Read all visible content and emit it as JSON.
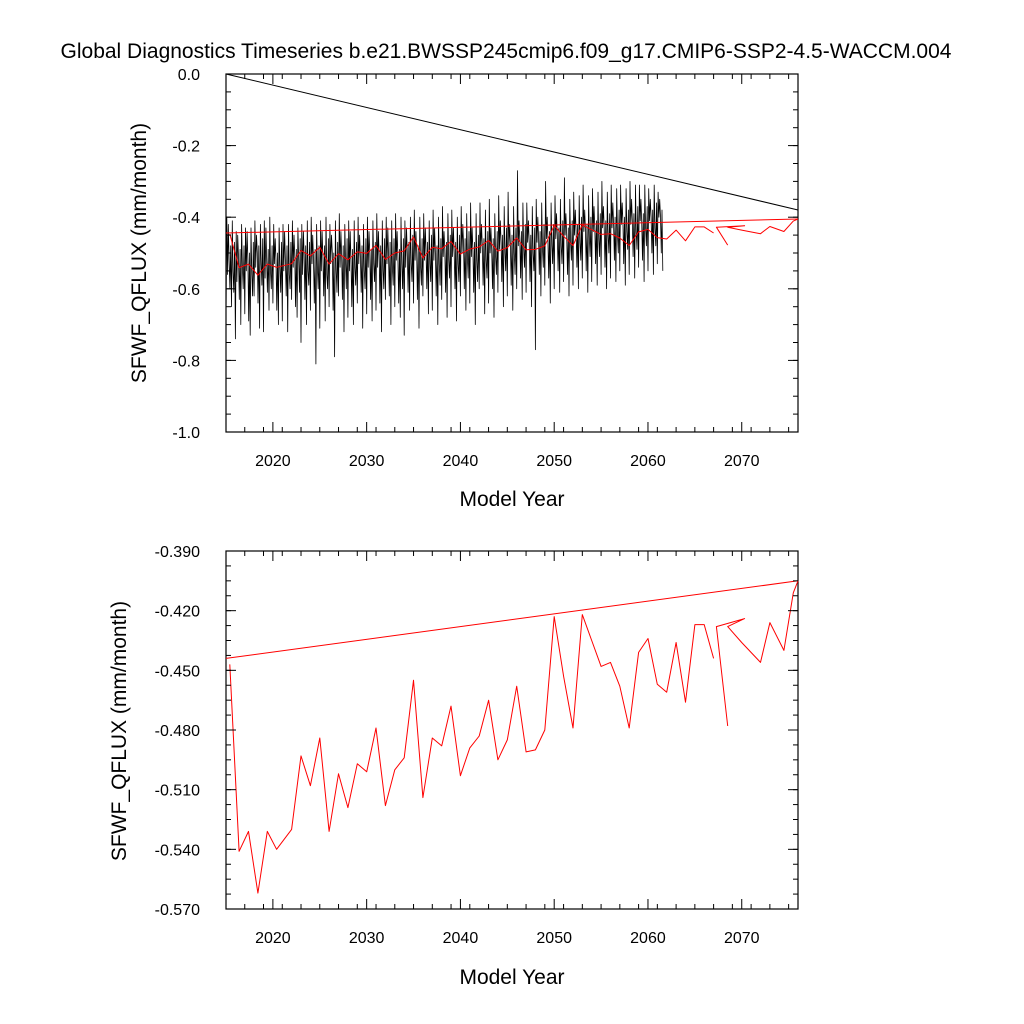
{
  "title": "Global Diagnostics Timeseries b.e21.BWSSP245cmip6.f09_g17.CMIP6-SSP2-4.5-WACCM.004",
  "chart_data": [
    {
      "type": "line",
      "title": "Global Diagnostics Timeseries b.e21.BWSSP245cmip6.f09_g17.CMIP6-SSP2-4.5-WACCM.004",
      "xlabel": "Model Year",
      "ylabel": "SFWF_QFLUX (mm/month)",
      "xlim": [
        2015,
        2076
      ],
      "ylim": [
        -1.0,
        0.0
      ],
      "xticks": [
        "2020",
        "2030",
        "2040",
        "2050",
        "2060",
        "2070"
      ],
      "yticks": [
        "0.0",
        "-0.2",
        "-0.4",
        "-0.6",
        "-0.8",
        "-1.0"
      ],
      "series": [
        {
          "name": "monthly",
          "color": "#000000",
          "x_start": 2015.0,
          "step": 0.0833333,
          "values": [
            -0.69,
            -0.4,
            -0.56,
            -0.42,
            -0.52,
            -0.6,
            -0.48,
            -0.65,
            -0.41,
            -0.55,
            -0.61,
            -0.47,
            -0.74,
            -0.44,
            -0.58,
            -0.45,
            -0.51,
            -0.63,
            -0.49,
            -0.7,
            -0.42,
            -0.54,
            -0.6,
            -0.48,
            -0.67,
            -0.43,
            -0.55,
            -0.44,
            -0.52,
            -0.69,
            -0.5,
            -0.73,
            -0.43,
            -0.56,
            -0.62,
            -0.47,
            -0.62,
            -0.41,
            -0.54,
            -0.45,
            -0.5,
            -0.64,
            -0.48,
            -0.71,
            -0.42,
            -0.53,
            -0.59,
            -0.46,
            -0.72,
            -0.41,
            -0.57,
            -0.43,
            -0.51,
            -0.61,
            -0.49,
            -0.66,
            -0.4,
            -0.55,
            -0.6,
            -0.48,
            -0.64,
            -0.42,
            -0.53,
            -0.46,
            -0.52,
            -0.66,
            -0.5,
            -0.7,
            -0.43,
            -0.54,
            -0.61,
            -0.47,
            -0.69,
            -0.42,
            -0.55,
            -0.44,
            -0.52,
            -0.62,
            -0.48,
            -0.72,
            -0.42,
            -0.56,
            -0.6,
            -0.47,
            -0.63,
            -0.41,
            -0.54,
            -0.45,
            -0.51,
            -0.65,
            -0.49,
            -0.68,
            -0.43,
            -0.52,
            -0.61,
            -0.46,
            -0.75,
            -0.42,
            -0.56,
            -0.44,
            -0.5,
            -0.63,
            -0.48,
            -0.7,
            -0.41,
            -0.55,
            -0.59,
            -0.47,
            -0.66,
            -0.4,
            -0.53,
            -0.45,
            -0.52,
            -0.64,
            -0.49,
            -0.81,
            -0.42,
            -0.54,
            -0.6,
            -0.48,
            -0.71,
            -0.41,
            -0.55,
            -0.44,
            -0.51,
            -0.62,
            -0.48,
            -0.69,
            -0.4,
            -0.56,
            -0.6,
            -0.46,
            -0.65,
            -0.42,
            -0.53,
            -0.45,
            -0.5,
            -0.66,
            -0.5,
            -0.79,
            -0.41,
            -0.55,
            -0.61,
            -0.47,
            -0.62,
            -0.39,
            -0.54,
            -0.44,
            -0.51,
            -0.63,
            -0.48,
            -0.72,
            -0.42,
            -0.53,
            -0.6,
            -0.46,
            -0.68,
            -0.41,
            -0.55,
            -0.44,
            -0.52,
            -0.65,
            -0.49,
            -0.7,
            -0.41,
            -0.54,
            -0.59,
            -0.47,
            -0.64,
            -0.4,
            -0.53,
            -0.45,
            -0.51,
            -0.61,
            -0.48,
            -0.71,
            -0.42,
            -0.55,
            -0.6,
            -0.46,
            -0.67,
            -0.4,
            -0.54,
            -0.44,
            -0.5,
            -0.63,
            -0.49,
            -0.69,
            -0.41,
            -0.53,
            -0.58,
            -0.47,
            -0.66,
            -0.39,
            -0.54,
            -0.44,
            -0.51,
            -0.64,
            -0.48,
            -0.72,
            -0.41,
            -0.55,
            -0.6,
            -0.46,
            -0.63,
            -0.4,
            -0.53,
            -0.43,
            -0.5,
            -0.62,
            -0.47,
            -0.7,
            -0.41,
            -0.54,
            -0.59,
            -0.46,
            -0.65,
            -0.39,
            -0.52,
            -0.44,
            -0.51,
            -0.64,
            -0.49,
            -0.68,
            -0.4,
            -0.53,
            -0.6,
            -0.46,
            -0.73,
            -0.41,
            -0.54,
            -0.43,
            -0.5,
            -0.61,
            -0.47,
            -0.66,
            -0.4,
            -0.53,
            -0.58,
            -0.45,
            -0.64,
            -0.38,
            -0.52,
            -0.44,
            -0.5,
            -0.63,
            -0.48,
            -0.71,
            -0.4,
            -0.54,
            -0.59,
            -0.46,
            -0.62,
            -0.39,
            -0.52,
            -0.43,
            -0.49,
            -0.6,
            -0.47,
            -0.67,
            -0.41,
            -0.53,
            -0.58,
            -0.45,
            -0.66,
            -0.38,
            -0.52,
            -0.43,
            -0.5,
            -0.62,
            -0.48,
            -0.7,
            -0.4,
            -0.53,
            -0.59,
            -0.46,
            -0.63,
            -0.37,
            -0.51,
            -0.44,
            -0.49,
            -0.61,
            -0.47,
            -0.68,
            -0.39,
            -0.52,
            -0.57,
            -0.45,
            -0.65,
            -0.38,
            -0.51,
            -0.43,
            -0.5,
            -0.6,
            -0.47,
            -0.69,
            -0.4,
            -0.53,
            -0.58,
            -0.45,
            -0.62,
            -0.37,
            -0.5,
            -0.42,
            -0.48,
            -0.6,
            -0.46,
            -0.66,
            -0.39,
            -0.52,
            -0.57,
            -0.44,
            -0.64,
            -0.36,
            -0.51,
            -0.43,
            -0.49,
            -0.61,
            -0.47,
            -0.7,
            -0.39,
            -0.52,
            -0.58,
            -0.45,
            -0.6,
            -0.36,
            -0.5,
            -0.42,
            -0.48,
            -0.59,
            -0.46,
            -0.67,
            -0.38,
            -0.52,
            -0.57,
            -0.44,
            -0.64,
            -0.35,
            -0.5,
            -0.43,
            -0.49,
            -0.6,
            -0.46,
            -0.68,
            -0.39,
            -0.51,
            -0.56,
            -0.44,
            -0.61,
            -0.34,
            -0.49,
            -0.41,
            -0.47,
            -0.58,
            -0.45,
            -0.65,
            -0.37,
            -0.5,
            -0.55,
            -0.43,
            -0.62,
            -0.33,
            -0.48,
            -0.42,
            -0.48,
            -0.59,
            -0.45,
            -0.66,
            -0.37,
            -0.5,
            -0.56,
            -0.43,
            -0.6,
            -0.27,
            -0.48,
            -0.41,
            -0.46,
            -0.57,
            -0.44,
            -0.63,
            -0.36,
            -0.49,
            -0.54,
            -0.42,
            -0.61,
            -0.36,
            -0.47,
            -0.41,
            -0.47,
            -0.58,
            -0.45,
            -0.65,
            -0.37,
            -0.5,
            -0.55,
            -0.43,
            -0.77,
            -0.35,
            -0.47,
            -0.4,
            -0.46,
            -0.56,
            -0.44,
            -0.62,
            -0.36,
            -0.49,
            -0.54,
            -0.42,
            -0.59,
            -0.3,
            -0.46,
            -0.4,
            -0.46,
            -0.57,
            -0.44,
            -0.64,
            -0.36,
            -0.48,
            -0.53,
            -0.42,
            -0.6,
            -0.34,
            -0.46,
            -0.39,
            -0.45,
            -0.55,
            -0.43,
            -0.61,
            -0.35,
            -0.48,
            -0.53,
            -0.41,
            -0.58,
            -0.29,
            -0.45,
            -0.39,
            -0.45,
            -0.56,
            -0.43,
            -0.62,
            -0.35,
            -0.47,
            -0.52,
            -0.41,
            -0.59,
            -0.33,
            -0.45,
            -0.38,
            -0.44,
            -0.54,
            -0.42,
            -0.6,
            -0.34,
            -0.47,
            -0.52,
            -0.4,
            -0.57,
            -0.31,
            -0.44,
            -0.38,
            -0.44,
            -0.55,
            -0.42,
            -0.61,
            -0.34,
            -0.46,
            -0.51,
            -0.4,
            -0.58,
            -0.32,
            -0.44,
            -0.37,
            -0.43,
            -0.53,
            -0.41,
            -0.59,
            -0.33,
            -0.46,
            -0.51,
            -0.39,
            -0.56,
            -0.3,
            -0.43,
            -0.37,
            -0.43,
            -0.54,
            -0.41,
            -0.6,
            -0.33,
            -0.45,
            -0.5,
            -0.39,
            -0.57,
            -0.31,
            -0.43,
            -0.36,
            -0.42,
            -0.52,
            -0.4,
            -0.58,
            -0.32,
            -0.45,
            -0.5,
            -0.38,
            -0.55,
            -0.31,
            -0.42,
            -0.36,
            -0.42,
            -0.53,
            -0.4,
            -0.59,
            -0.32,
            -0.44,
            -0.49,
            -0.38,
            -0.56,
            -0.3,
            -0.42,
            -0.35,
            -0.41,
            -0.51,
            -0.39,
            -0.57,
            -0.31,
            -0.44,
            -0.49,
            -0.37,
            -0.54,
            -0.31,
            -0.41,
            -0.35,
            -0.41,
            -0.52,
            -0.39,
            -0.58,
            -0.31,
            -0.43,
            -0.48,
            -0.37,
            -0.55,
            -0.32,
            -0.41,
            -0.35,
            -0.4,
            -0.5,
            -0.38,
            -0.56,
            -0.31,
            -0.43,
            -0.48,
            -0.36,
            -0.53,
            -0.33,
            -0.4,
            -0.35,
            -0.4,
            -0.5,
            -0.38,
            -0.55
          ]
        },
        {
          "name": "monthly-endpoint-trend",
          "color": "#000000",
          "x": [
            2015.0,
            2076.0
          ],
          "values": [
            0.0,
            -0.38
          ]
        },
        {
          "name": "annual-mean",
          "color": "#ff0000",
          "x": [
            2015.4,
            2016.4,
            2017.4,
            2018.4,
            2019.4,
            2020.4,
            2022.0,
            2023.0,
            2024.0,
            2025.0,
            2026.0,
            2027.0,
            2028.0,
            2029.0,
            2030.0,
            2031.0,
            2032.0,
            2033.0,
            2034.0,
            2035.0,
            2036.0,
            2037.0,
            2038.0,
            2039.0,
            2040.0,
            2041.0,
            2042.0,
            2043.0,
            2044.0,
            2045.0,
            2046.0,
            2047.0,
            2048.0,
            2049.0,
            2050.0,
            2051.0,
            2052.0,
            2053.0,
            2054.0,
            2055.0,
            2056.0,
            2057.0,
            2058.0,
            2059.0,
            2060.0,
            2061.0,
            2062.0,
            2063.0,
            2064.0,
            2065.0,
            2066.0,
            2067.0
          ],
          "values": [
            -0.447,
            -0.541,
            -0.531,
            -0.562,
            -0.531,
            -0.54,
            -0.53,
            -0.493,
            -0.508,
            -0.484,
            -0.531,
            -0.502,
            -0.519,
            -0.497,
            -0.501,
            -0.479,
            -0.518,
            -0.5,
            -0.494,
            -0.455,
            -0.514,
            -0.484,
            -0.488,
            -0.468,
            -0.503,
            -0.489,
            -0.483,
            -0.465,
            -0.495,
            -0.485,
            -0.458,
            -0.491,
            -0.49,
            -0.48,
            -0.423,
            -0.453,
            -0.479,
            -0.422,
            -0.435,
            -0.448,
            -0.446,
            -0.458,
            -0.479,
            -0.441,
            -0.434,
            -0.457,
            -0.461,
            -0.436,
            -0.466,
            -0.427,
            -0.427,
            -0.444
          ]
        },
        {
          "name": "annual-mean-end",
          "color": "#ff0000",
          "x": [
            2068.5,
            2067.3,
            2070.3,
            2068.5,
            2070.0,
            2072.0,
            2073.0,
            2074.5,
            2075.5,
            2076.0
          ],
          "values": [
            -0.478,
            -0.428,
            -0.424,
            -0.428,
            -0.436,
            -0.446,
            -0.426,
            -0.44,
            -0.411,
            -0.405
          ]
        },
        {
          "name": "annual-trend",
          "color": "#ff0000",
          "x": [
            2015.0,
            2076.0
          ],
          "values": [
            -0.444,
            -0.405
          ]
        }
      ]
    },
    {
      "type": "line",
      "title": "",
      "xlabel": "Model Year",
      "ylabel": "SFWF_QFLUX (mm/month)",
      "xlim": [
        2015,
        2076
      ],
      "ylim": [
        -0.57,
        -0.39
      ],
      "xticks": [
        "2020",
        "2030",
        "2040",
        "2050",
        "2060",
        "2070"
      ],
      "yticks": [
        "-0.390",
        "-0.420",
        "-0.450",
        "-0.480",
        "-0.510",
        "-0.540",
        "-0.570"
      ],
      "series_ref": "annual-mean, annual-mean-end, annual-trend"
    }
  ]
}
